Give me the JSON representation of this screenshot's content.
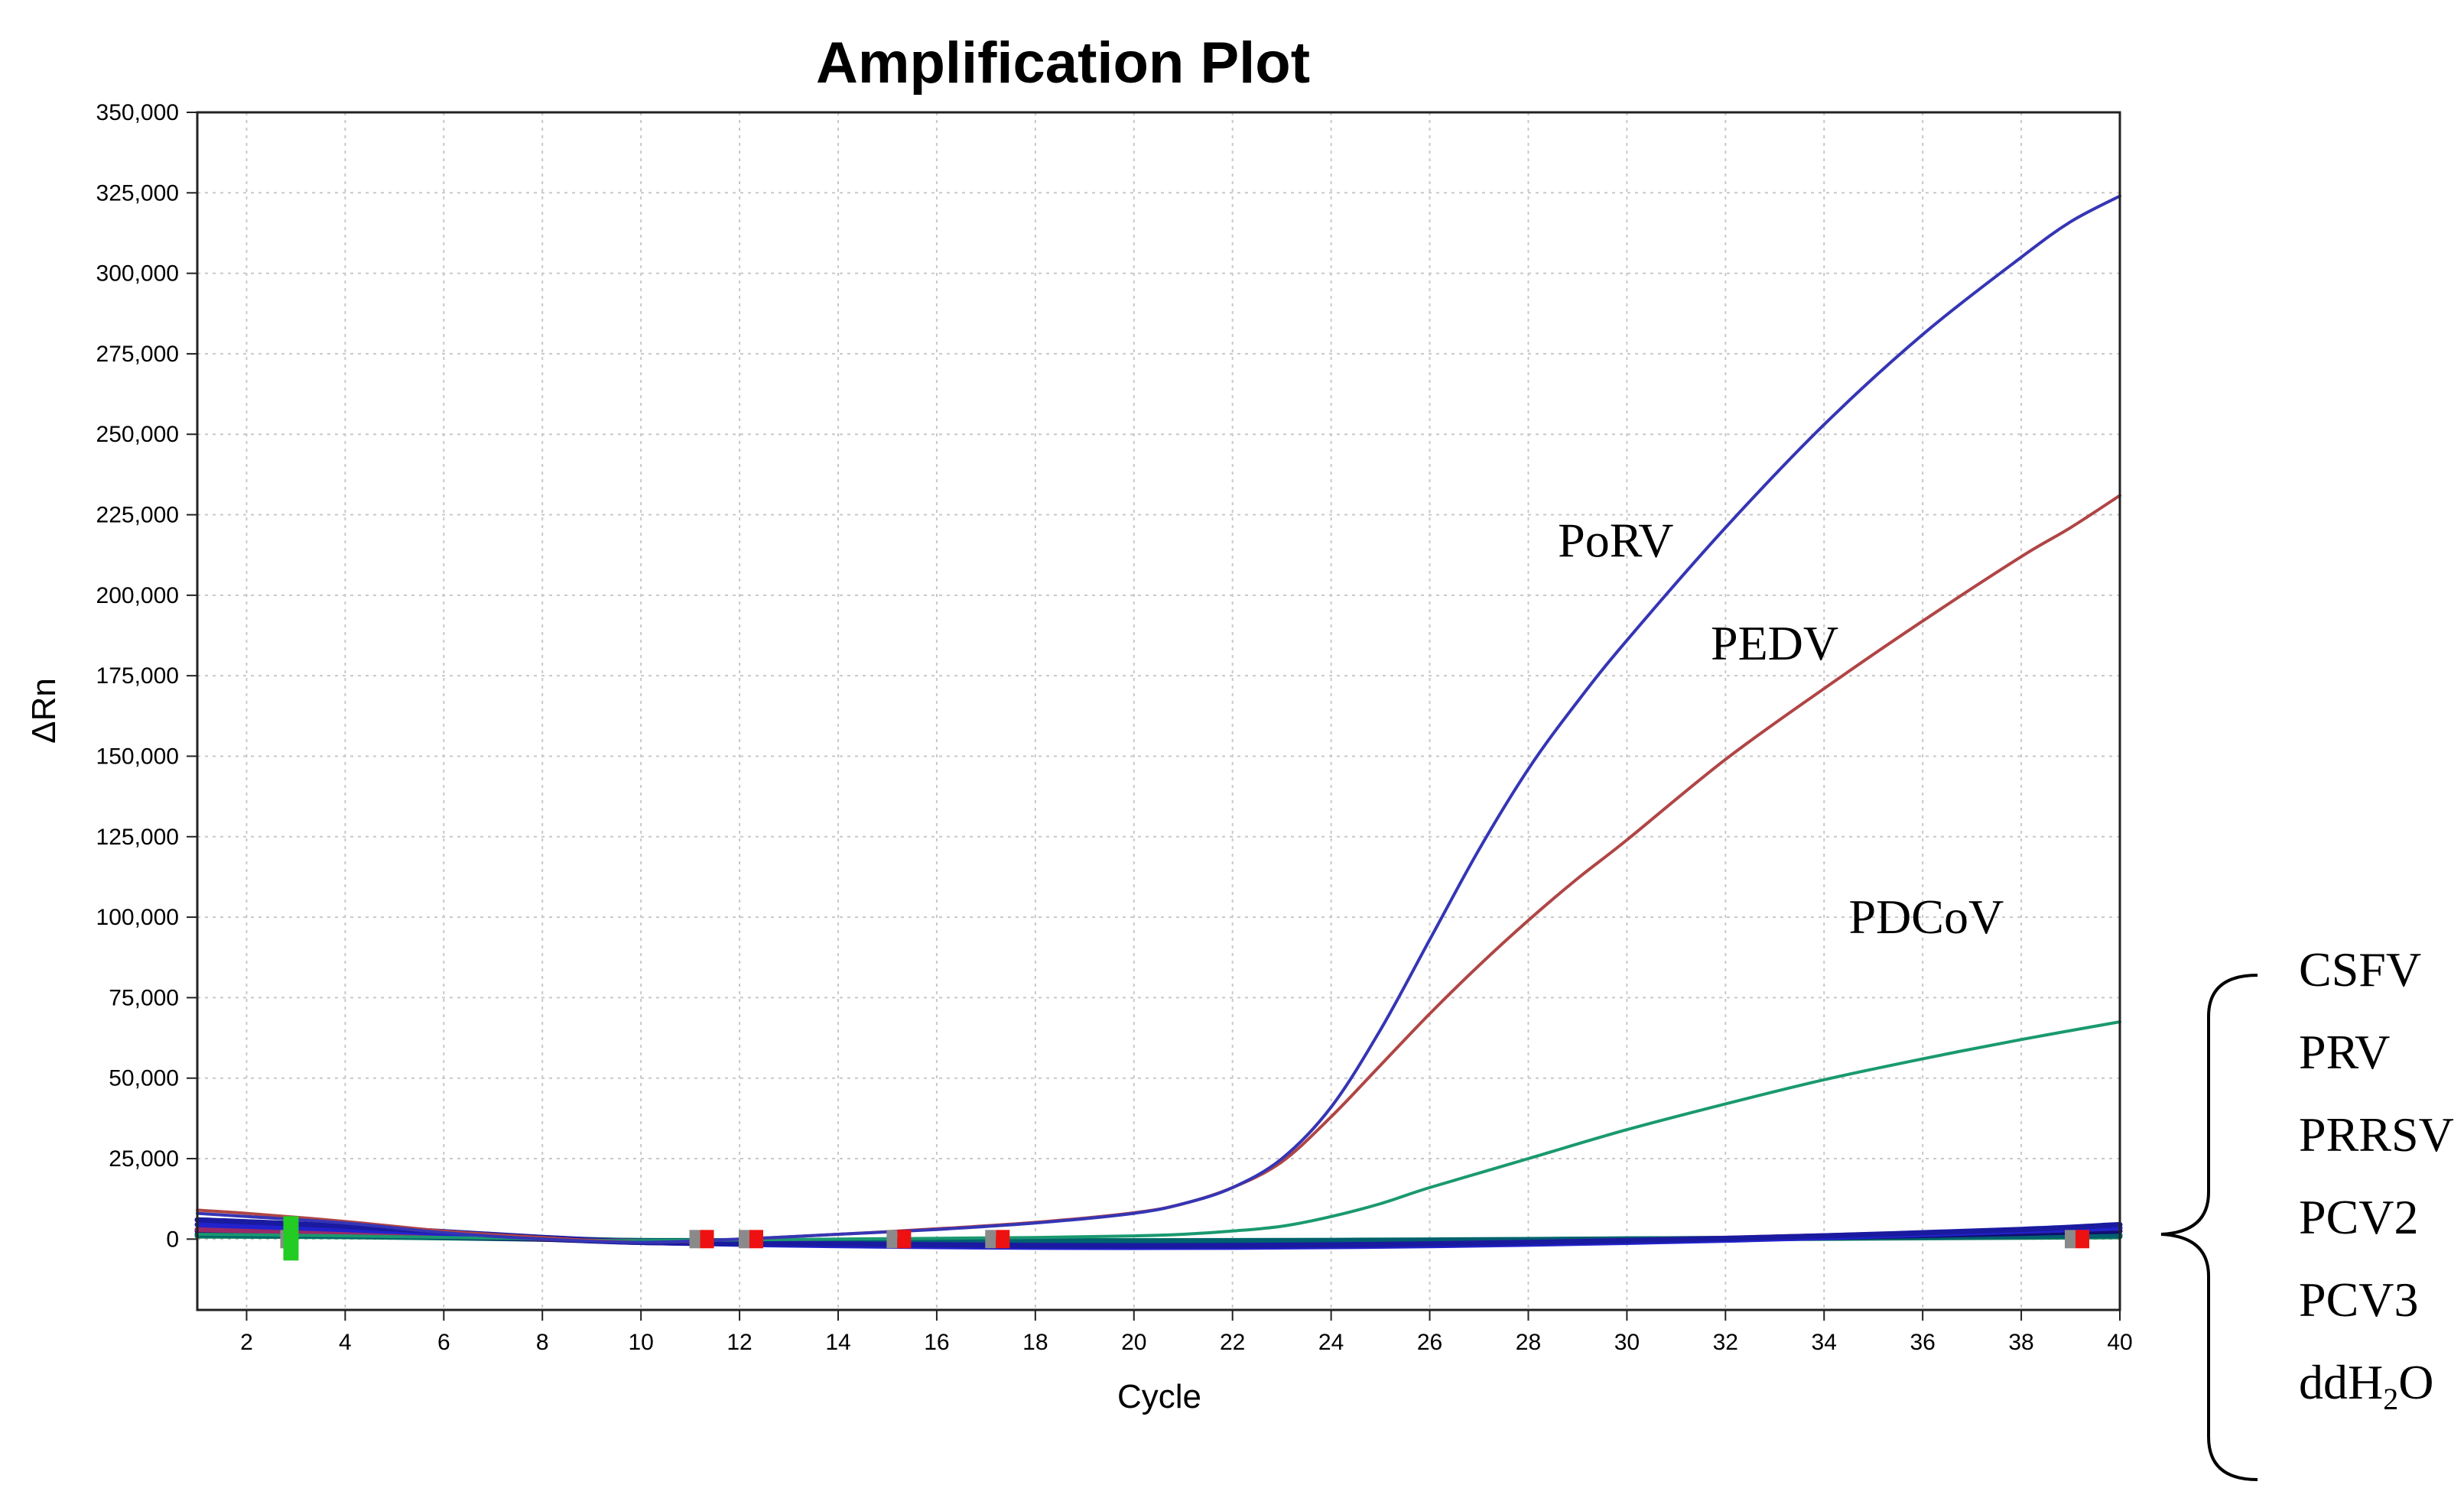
{
  "chart_data": {
    "type": "line",
    "title": "Amplification Plot",
    "xlabel": "Cycle",
    "ylabel": "ΔRn",
    "xlim": [
      1,
      40
    ],
    "ylim": [
      -22000,
      350000
    ],
    "grid": true,
    "x_ticks": [
      2,
      4,
      6,
      8,
      10,
      12,
      14,
      16,
      18,
      20,
      22,
      24,
      26,
      28,
      30,
      32,
      34,
      36,
      38,
      40
    ],
    "y_ticks": [
      0,
      25000,
      50000,
      75000,
      100000,
      125000,
      150000,
      175000,
      200000,
      225000,
      250000,
      275000,
      300000,
      325000,
      350000
    ],
    "y_tick_labels": [
      "0",
      "25,000",
      "50,000",
      "75,000",
      "100,000",
      "125,000",
      "150,000",
      "175,000",
      "200,000",
      "225,000",
      "250,000",
      "275,000",
      "300,000",
      "325,000",
      "350,000"
    ],
    "series": [
      {
        "name": "PoRV",
        "color": "#3535b5",
        "x": [
          1,
          2,
          4,
          6,
          8,
          10,
          12,
          14,
          16,
          18,
          20,
          21,
          22,
          23,
          24,
          25,
          26,
          27,
          28,
          29,
          30,
          32,
          34,
          36,
          38,
          39,
          40
        ],
        "y": [
          8000,
          7000,
          5000,
          2000,
          0,
          -1000,
          0,
          1500,
          3000,
          5000,
          8000,
          11000,
          16000,
          25000,
          41000,
          65000,
          93000,
          121000,
          146000,
          167000,
          186000,
          221000,
          253000,
          281000,
          305000,
          316000,
          324000
        ]
      },
      {
        "name": "PEDV",
        "color": "#b04545",
        "x": [
          1,
          2,
          4,
          6,
          8,
          10,
          12,
          14,
          16,
          18,
          20,
          21,
          22,
          23,
          24,
          25,
          26,
          27,
          28,
          29,
          30,
          32,
          34,
          36,
          38,
          39,
          40
        ],
        "y": [
          9000,
          8000,
          5500,
          2500,
          500,
          -1000,
          0,
          1500,
          3200,
          5200,
          8200,
          11000,
          16000,
          24000,
          38000,
          54000,
          70000,
          85000,
          99000,
          112000,
          124000,
          149000,
          171000,
          192000,
          212000,
          221000,
          231000
        ]
      },
      {
        "name": "PDCoV",
        "color": "#1a9970",
        "x": [
          1,
          4,
          8,
          10,
          14,
          18,
          20,
          21,
          22,
          23,
          24,
          25,
          26,
          28,
          30,
          32,
          34,
          36,
          38,
          40
        ],
        "y": [
          1500,
          1000,
          0,
          -500,
          0,
          500,
          1000,
          1500,
          2500,
          4000,
          7000,
          11000,
          16000,
          25000,
          34000,
          42000,
          49500,
          56000,
          62000,
          67500
        ]
      },
      {
        "name": "CSFV",
        "color": "#1a1aa0",
        "x": [
          1,
          4,
          8,
          10,
          14,
          18,
          22,
          26,
          30,
          34,
          38,
          40
        ],
        "y": [
          6000,
          4000,
          500,
          -1000,
          -1500,
          -2000,
          -2000,
          -1500,
          -500,
          1000,
          3000,
          4500
        ]
      },
      {
        "name": "PRV",
        "color": "#2222cc",
        "x": [
          1,
          4,
          8,
          10,
          14,
          18,
          22,
          26,
          30,
          34,
          38,
          40
        ],
        "y": [
          4500,
          3000,
          500,
          -1000,
          -2000,
          -2500,
          -2500,
          -2000,
          -1000,
          500,
          2500,
          3500
        ]
      },
      {
        "name": "PRRSV",
        "color": "#0a7a5a",
        "x": [
          1,
          4,
          8,
          10,
          14,
          18,
          22,
          26,
          30,
          34,
          38,
          40
        ],
        "y": [
          1000,
          800,
          0,
          -500,
          -500,
          -500,
          -500,
          -300,
          0,
          300,
          600,
          800
        ]
      },
      {
        "name": "PCV2",
        "color": "#006070",
        "x": [
          1,
          4,
          8,
          10,
          14,
          18,
          22,
          26,
          30,
          34,
          38,
          40
        ],
        "y": [
          1500,
          1000,
          200,
          -500,
          -800,
          -800,
          -600,
          -400,
          0,
          400,
          900,
          1200
        ]
      },
      {
        "name": "PCV3",
        "color": "#9a2a6a",
        "x": [
          1,
          4,
          8,
          10,
          14,
          18,
          22,
          26,
          30,
          34,
          38,
          40
        ],
        "y": [
          3000,
          2000,
          300,
          -800,
          -1500,
          -2000,
          -2200,
          -1500,
          -500,
          1000,
          2500,
          3500
        ]
      },
      {
        "name": "ddH2O",
        "color": "#101070",
        "x": [
          1,
          4,
          8,
          10,
          14,
          18,
          22,
          26,
          30,
          34,
          38,
          40
        ],
        "y": [
          2500,
          1500,
          0,
          -1000,
          -1800,
          -2200,
          -2300,
          -1800,
          -800,
          500,
          1800,
          2500
        ]
      }
    ],
    "annotations": [
      {
        "text": "PoRV",
        "x": 28.6,
        "y": 212000
      },
      {
        "text": "PEDV",
        "x": 31.7,
        "y": 180000
      },
      {
        "text": "PDCoV",
        "x": 34.5,
        "y": 95000
      }
    ],
    "baseline_markers": [
      {
        "cycle": 2.9,
        "color": "#22cc22"
      },
      {
        "cycle": 11.2,
        "color": "#ee1111"
      },
      {
        "cycle": 12.2,
        "color": "#ee1111"
      },
      {
        "cycle": 15.2,
        "color": "#ee1111"
      },
      {
        "cycle": 17.2,
        "color": "#ee1111"
      },
      {
        "cycle": 39.1,
        "color": "#ee1111"
      }
    ],
    "bracket_group": {
      "labels": [
        "CSFV",
        "PRV",
        "PRRSV",
        "PCV2",
        "PCV3",
        "ddH"
      ],
      "last_label_subscript": "2",
      "last_label_suffix": "O"
    }
  }
}
